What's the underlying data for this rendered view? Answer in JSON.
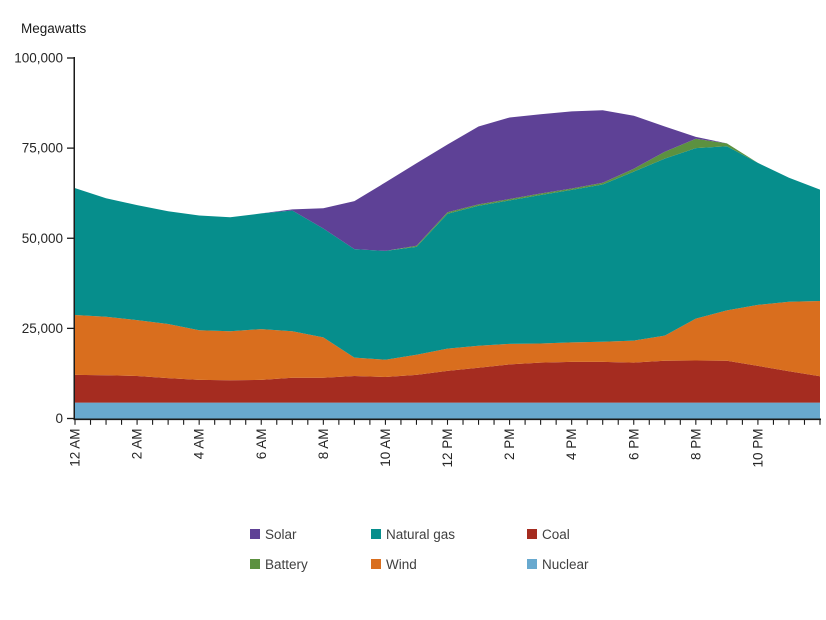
{
  "page": {
    "background": "#ffffff"
  },
  "chart_data": {
    "type": "area",
    "stacked": true,
    "title": "",
    "ylabel": "Megawatts",
    "xlabel": "",
    "x_unit_hours": true,
    "x": [
      0,
      1,
      2,
      3,
      4,
      5,
      6,
      7,
      8,
      9,
      10,
      11,
      12,
      13,
      14,
      15,
      16,
      17,
      18,
      19,
      20,
      21,
      22,
      23,
      24
    ],
    "x_tick_hours": [
      0,
      2,
      4,
      6,
      8,
      10,
      12,
      14,
      16,
      18,
      20,
      22
    ],
    "x_tick_labels": [
      "12 AM",
      "2 AM",
      "4 AM",
      "6 AM",
      "8 AM",
      "10 AM",
      "12 PM",
      "2 PM",
      "4 PM",
      "6 PM",
      "8 PM",
      "10 PM"
    ],
    "minor_tick_interval_hours": 0.5,
    "ylim": [
      0,
      100000
    ],
    "y_ticks": [
      0,
      25000,
      50000,
      75000,
      100000
    ],
    "y_tick_labels": [
      "0",
      "25,000",
      "50,000",
      "75,000",
      "100,000"
    ],
    "grid": false,
    "legend_position": "bottom",
    "axis_color": "#1a1a1a",
    "tick_label_color": "#262626",
    "series": [
      {
        "name": "Nuclear",
        "color": "#68a9cf",
        "values": [
          4400,
          4400,
          4400,
          4400,
          4400,
          4400,
          4400,
          4400,
          4400,
          4400,
          4400,
          4400,
          4400,
          4400,
          4400,
          4400,
          4400,
          4400,
          4400,
          4400,
          4400,
          4400,
          4400,
          4400,
          4400
        ]
      },
      {
        "name": "Coal",
        "color": "#a52c20",
        "values": [
          7700,
          7600,
          7400,
          6800,
          6300,
          6200,
          6300,
          6900,
          6900,
          7400,
          7100,
          7700,
          8800,
          9700,
          10600,
          11100,
          11300,
          11300,
          11100,
          11600,
          11700,
          11600,
          10200,
          8700,
          7300
        ]
      },
      {
        "name": "Wind",
        "color": "#d96e1e",
        "values": [
          16600,
          16200,
          15500,
          15000,
          13800,
          13600,
          14100,
          12900,
          11200,
          5100,
          4800,
          5600,
          6200,
          6100,
          5700,
          5300,
          5400,
          5600,
          6100,
          7000,
          11600,
          14000,
          16900,
          19300,
          20900
        ]
      },
      {
        "name": "Natural gas",
        "color": "#068e8c",
        "values": [
          35200,
          32900,
          31900,
          31300,
          31800,
          31600,
          32100,
          33500,
          30200,
          30100,
          30200,
          29900,
          37400,
          38800,
          39800,
          41200,
          42300,
          43600,
          46900,
          49100,
          47300,
          45500,
          39400,
          34400,
          30900
        ]
      },
      {
        "name": "Battery",
        "color": "#5c9140",
        "values": [
          0,
          0,
          0,
          0,
          0,
          0,
          0,
          0,
          0,
          0,
          0,
          300,
          400,
          400,
          400,
          400,
          400,
          500,
          800,
          1900,
          2600,
          800,
          0,
          0,
          0
        ]
      },
      {
        "name": "Solar",
        "color": "#5e4196",
        "values": [
          0,
          0,
          0,
          0,
          0,
          0,
          0,
          300,
          5600,
          13300,
          19000,
          22900,
          18800,
          21600,
          22600,
          22000,
          21400,
          20100,
          14700,
          7000,
          500,
          0,
          0,
          0,
          0
        ]
      }
    ],
    "legend_rows": [
      [
        "Solar",
        "Natural gas",
        "Coal"
      ],
      [
        "Battery",
        "Wind",
        "Nuclear"
      ]
    ]
  }
}
